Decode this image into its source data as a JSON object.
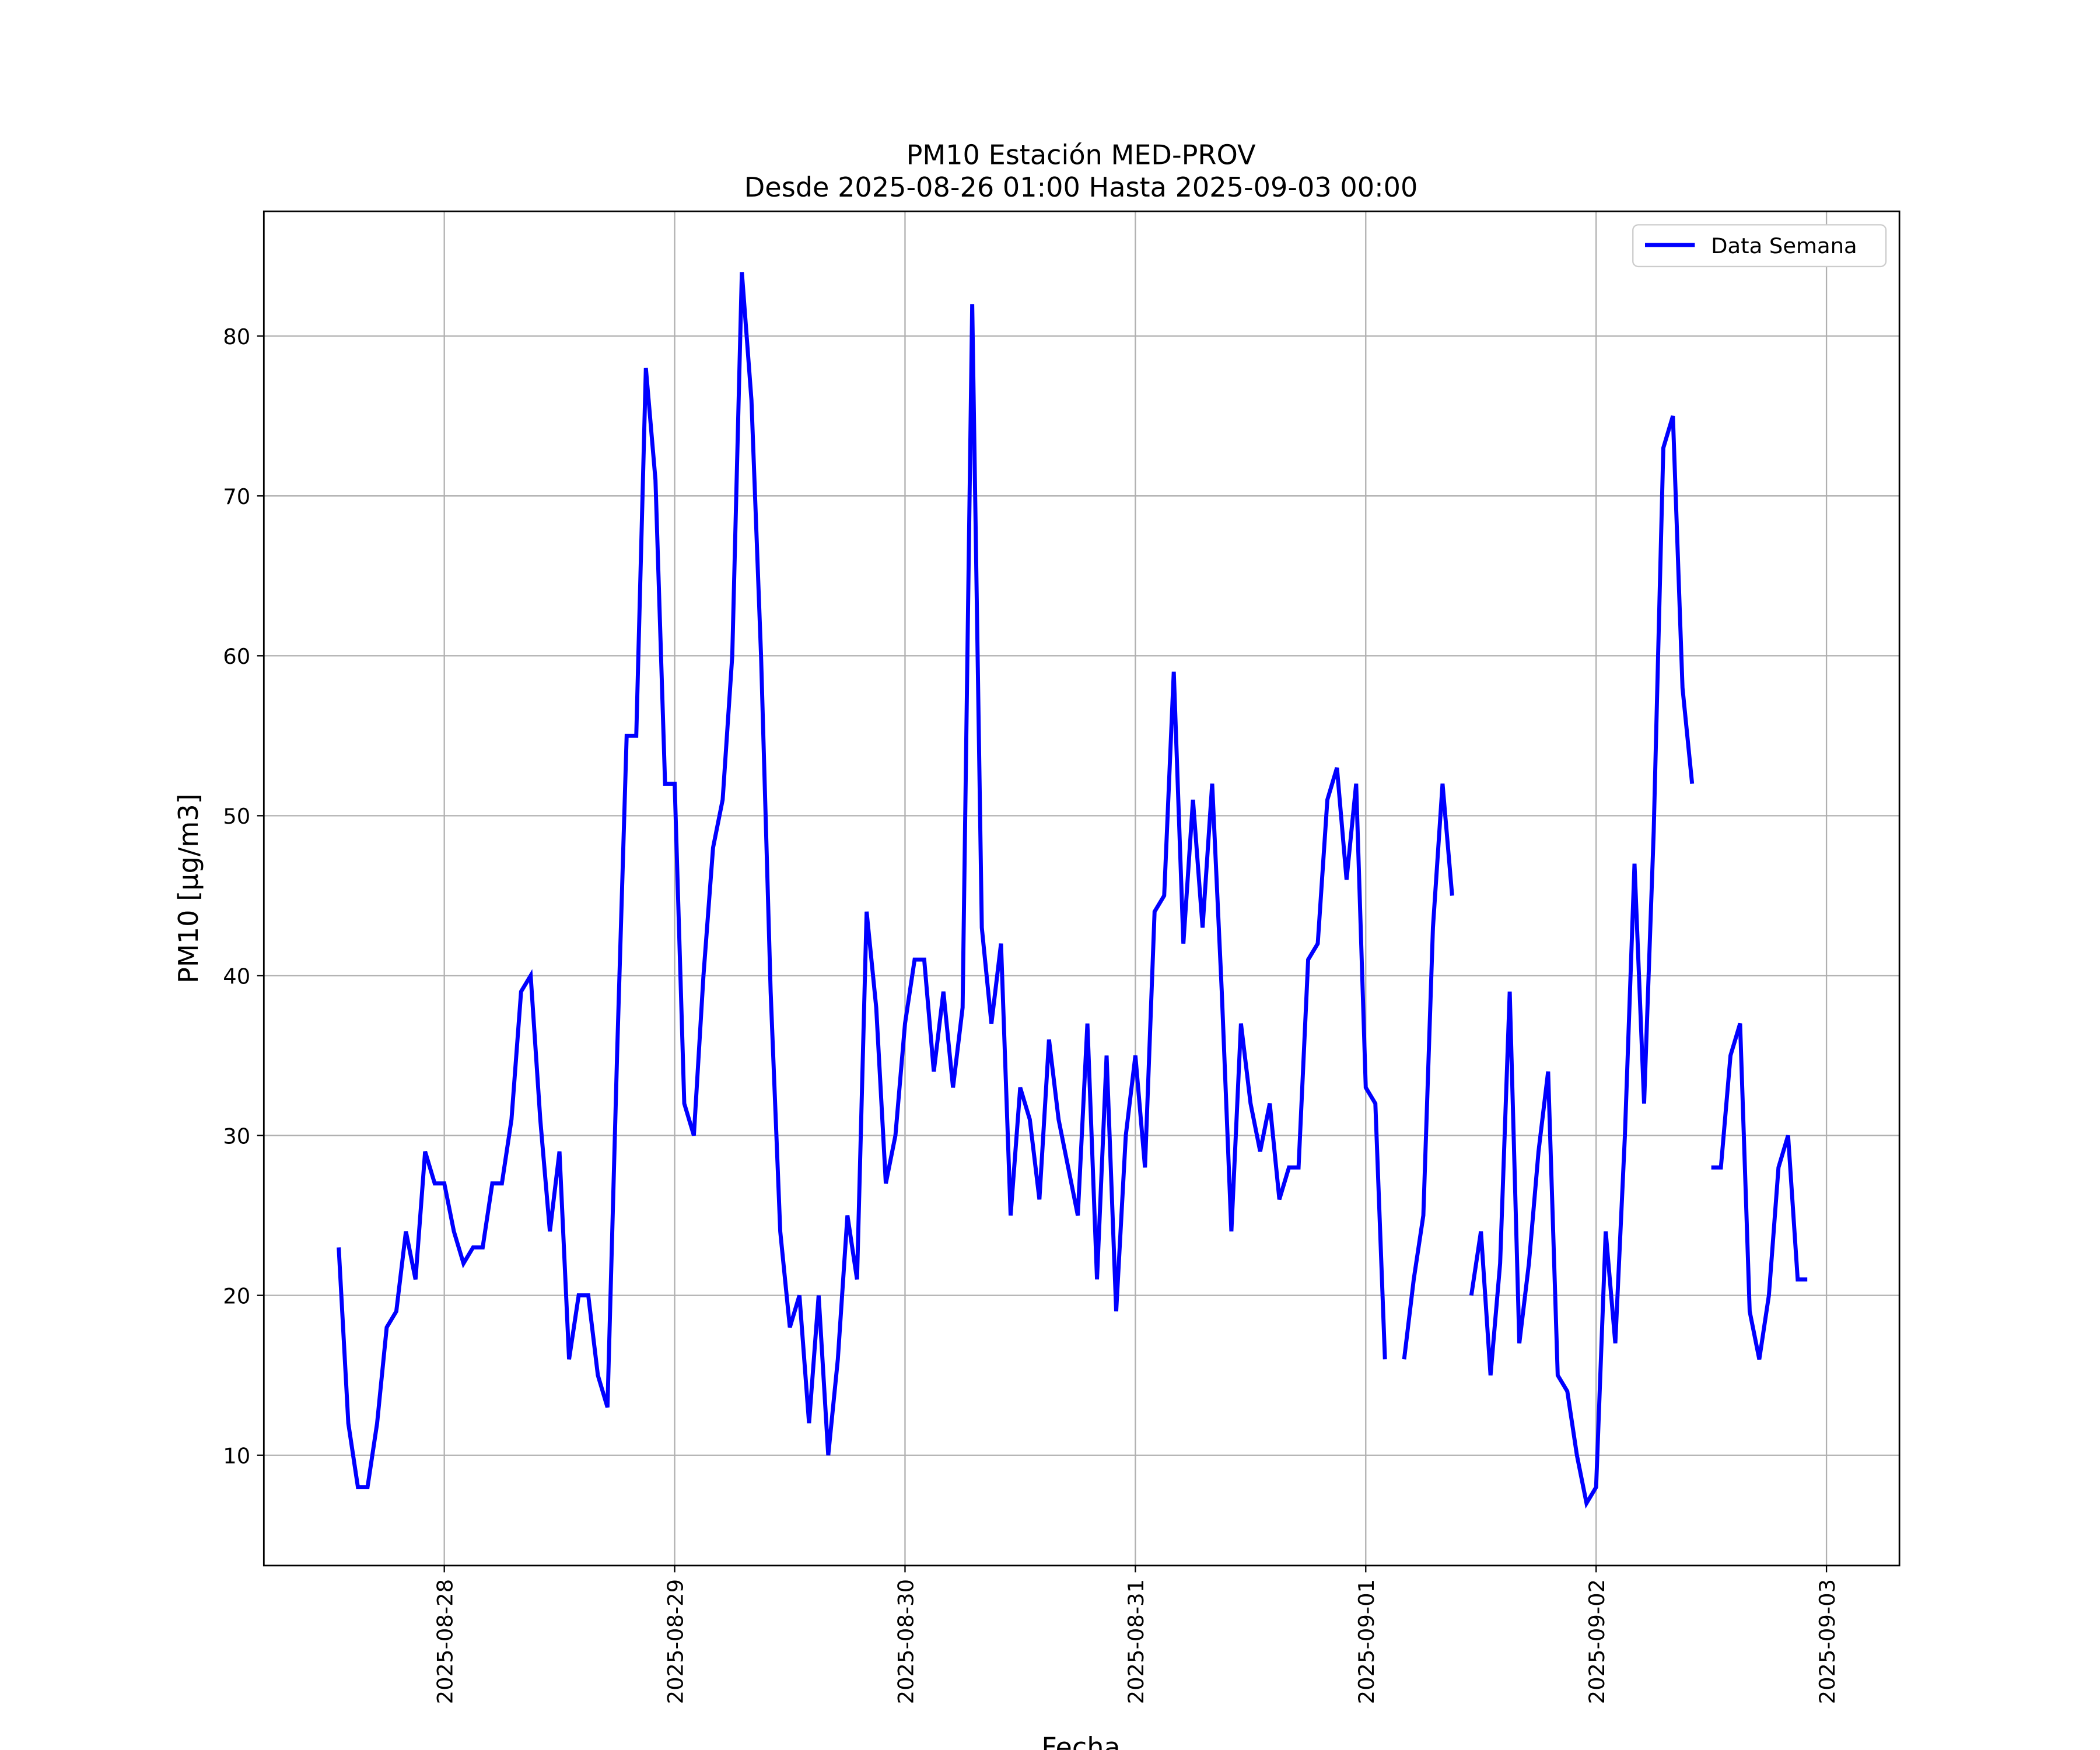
{
  "chart_data": {
    "type": "line",
    "title": "PM10 Estación MED-PROV",
    "subtitle": "Desde 2025-08-26 01:00 Hasta 2025-09-03 00:00",
    "xlabel": "Fecha",
    "ylabel": "PM10 [μg/m3]",
    "x": [
      "2025-08-27 13:00",
      "2025-08-27 14:00",
      "2025-08-27 15:00",
      "2025-08-27 16:00",
      "2025-08-27 17:00",
      "2025-08-27 18:00",
      "2025-08-27 19:00",
      "2025-08-27 20:00",
      "2025-08-27 21:00",
      "2025-08-27 22:00",
      "2025-08-27 23:00",
      "2025-08-28 00:00",
      "2025-08-28 01:00",
      "2025-08-28 02:00",
      "2025-08-28 03:00",
      "2025-08-28 04:00",
      "2025-08-28 05:00",
      "2025-08-28 06:00",
      "2025-08-28 07:00",
      "2025-08-28 08:00",
      "2025-08-28 09:00",
      "2025-08-28 10:00",
      "2025-08-28 11:00",
      "2025-08-28 12:00",
      "2025-08-28 13:00",
      "2025-08-28 14:00",
      "2025-08-28 15:00",
      "2025-08-28 16:00",
      "2025-08-28 17:00",
      "2025-08-28 18:00",
      "2025-08-28 19:00",
      "2025-08-28 20:00",
      "2025-08-28 21:00",
      "2025-08-28 22:00",
      "2025-08-28 23:00",
      "2025-08-29 00:00",
      "2025-08-29 01:00",
      "2025-08-29 02:00",
      "2025-08-29 03:00",
      "2025-08-29 04:00",
      "2025-08-29 05:00",
      "2025-08-29 06:00",
      "2025-08-29 07:00",
      "2025-08-29 08:00",
      "2025-08-29 09:00",
      "2025-08-29 10:00",
      "2025-08-29 11:00",
      "2025-08-29 12:00",
      "2025-08-29 13:00",
      "2025-08-29 14:00",
      "2025-08-29 15:00",
      "2025-08-29 16:00",
      "2025-08-29 17:00",
      "2025-08-29 18:00",
      "2025-08-29 19:00",
      "2025-08-29 20:00",
      "2025-08-29 21:00",
      "2025-08-29 22:00",
      "2025-08-29 23:00",
      "2025-08-30 00:00",
      "2025-08-30 01:00",
      "2025-08-30 02:00",
      "2025-08-30 03:00",
      "2025-08-30 04:00",
      "2025-08-30 05:00",
      "2025-08-30 06:00",
      "2025-08-30 07:00",
      "2025-08-30 08:00",
      "2025-08-30 09:00",
      "2025-08-30 10:00",
      "2025-08-30 11:00",
      "2025-08-30 12:00",
      "2025-08-30 13:00",
      "2025-08-30 14:00",
      "2025-08-30 15:00",
      "2025-08-30 16:00",
      "2025-08-30 17:00",
      "2025-08-30 18:00",
      "2025-08-30 19:00",
      "2025-08-30 20:00",
      "2025-08-30 21:00",
      "2025-08-30 22:00",
      "2025-08-30 23:00",
      "2025-08-31 00:00",
      "2025-08-31 01:00",
      "2025-08-31 02:00",
      "2025-08-31 03:00",
      "2025-08-31 04:00",
      "2025-08-31 05:00",
      "2025-08-31 06:00",
      "2025-08-31 07:00",
      "2025-08-31 08:00",
      "2025-08-31 09:00",
      "2025-08-31 10:00",
      "2025-08-31 11:00",
      "2025-08-31 12:00",
      "2025-08-31 13:00",
      "2025-08-31 14:00",
      "2025-08-31 15:00",
      "2025-08-31 16:00",
      "2025-08-31 17:00",
      "2025-08-31 18:00",
      "2025-08-31 19:00",
      "2025-08-31 20:00",
      "2025-08-31 21:00",
      "2025-08-31 22:00",
      "2025-08-31 23:00",
      "2025-09-01 00:00",
      "2025-09-01 01:00",
      "2025-09-01 02:00",
      "2025-09-01 03:00",
      "2025-09-01 04:00",
      "2025-09-01 05:00",
      "2025-09-01 06:00",
      "2025-09-01 07:00",
      "2025-09-01 08:00",
      "2025-09-01 09:00",
      "2025-09-01 10:00",
      "2025-09-01 11:00",
      "2025-09-01 12:00",
      "2025-09-01 13:00",
      "2025-09-01 14:00",
      "2025-09-01 15:00",
      "2025-09-01 16:00",
      "2025-09-01 17:00",
      "2025-09-01 18:00",
      "2025-09-01 19:00",
      "2025-09-01 20:00",
      "2025-09-01 21:00",
      "2025-09-01 22:00",
      "2025-09-01 23:00",
      "2025-09-02 00:00",
      "2025-09-02 01:00",
      "2025-09-02 02:00",
      "2025-09-02 03:00",
      "2025-09-02 04:00",
      "2025-09-02 05:00",
      "2025-09-02 06:00",
      "2025-09-02 07:00",
      "2025-09-02 08:00",
      "2025-09-02 09:00",
      "2025-09-02 10:00",
      "2025-09-02 11:00",
      "2025-09-02 12:00",
      "2025-09-02 13:00",
      "2025-09-02 14:00",
      "2025-09-02 15:00",
      "2025-09-02 16:00",
      "2025-09-02 17:00",
      "2025-09-02 18:00",
      "2025-09-02 19:00",
      "2025-09-02 20:00",
      "2025-09-02 21:00",
      "2025-09-02 22:00"
    ],
    "series": [
      {
        "name": "Data Semana",
        "color": "#0000ff",
        "values": [
          23,
          12,
          8,
          8,
          12,
          18,
          19,
          24,
          21,
          29,
          27,
          27,
          24,
          22,
          23,
          23,
          27,
          27,
          31,
          39,
          40,
          31,
          24,
          29,
          16,
          20,
          20,
          15,
          13,
          35,
          55,
          55,
          78,
          71,
          52,
          52,
          32,
          30,
          40,
          48,
          51,
          60,
          84,
          76,
          60,
          39,
          24,
          18,
          20,
          12,
          20,
          10,
          16,
          25,
          21,
          44,
          38,
          27,
          30,
          37,
          41,
          41,
          34,
          39,
          33,
          38,
          82,
          43,
          37,
          42,
          25,
          33,
          31,
          26,
          36,
          31,
          28,
          25,
          37,
          21,
          35,
          19,
          30,
          35,
          28,
          44,
          45,
          59,
          42,
          51,
          43,
          52,
          39,
          24,
          37,
          32,
          29,
          32,
          26,
          28,
          28,
          41,
          42,
          51,
          53,
          46,
          52,
          33,
          32,
          16,
          null,
          16,
          21,
          25,
          43,
          52,
          45,
          null,
          20,
          24,
          15,
          22,
          39,
          17,
          22,
          29,
          34,
          15,
          14,
          10,
          7,
          8,
          24,
          17,
          30,
          47,
          32,
          49,
          73,
          75,
          58,
          52,
          null,
          28,
          28,
          35,
          37,
          19,
          16,
          20,
          28,
          30,
          21,
          21
        ]
      }
    ],
    "xlim": [
      "2025-08-27 05:12",
      "2025-09-03 07:36"
    ],
    "xticks": [
      "2025-08-28",
      "2025-08-29",
      "2025-08-30",
      "2025-08-31",
      "2025-09-01",
      "2025-09-02",
      "2025-09-03"
    ],
    "ylim": [
      3.1,
      87.8
    ],
    "yticks": [
      10,
      20,
      30,
      40,
      50,
      60,
      70,
      80
    ],
    "grid": true,
    "legend": "upper right"
  }
}
